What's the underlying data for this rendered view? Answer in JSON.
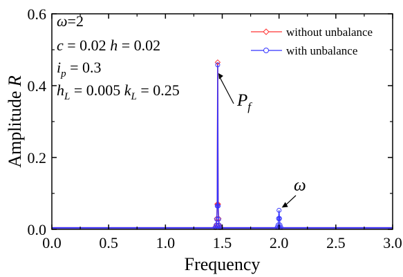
{
  "chart_data": {
    "type": "line",
    "xlabel": "Frequency",
    "ylabel": {
      "text": "Amplitude",
      "symbol": "R"
    },
    "xlim": [
      0.0,
      3.0
    ],
    "ylim": [
      0.0,
      0.6
    ],
    "x_ticks": [
      0.0,
      0.5,
      1.0,
      1.5,
      2.0,
      2.5,
      3.0
    ],
    "x_tick_labels": [
      "0.0",
      "0.5",
      "1.0",
      "1.5",
      "2.0",
      "2.5",
      "3.0"
    ],
    "y_ticks": [
      0.0,
      0.2,
      0.4,
      0.6
    ],
    "y_tick_labels": [
      "0.0",
      "0.2",
      "0.4",
      "0.6"
    ],
    "grid": false,
    "legend_position": "top-right",
    "series": [
      {
        "name": "without unbalance",
        "color": "#ff3333",
        "marker": "diamond",
        "x": [
          0.0,
          1.4,
          1.44,
          1.448,
          1.452,
          1.456,
          1.46,
          1.464,
          1.468,
          1.472,
          1.48,
          1.52,
          2.0,
          3.0
        ],
        "y": [
          0.004,
          0.004,
          0.006,
          0.012,
          0.03,
          0.07,
          0.465,
          0.07,
          0.03,
          0.012,
          0.006,
          0.004,
          0.004,
          0.004
        ]
      },
      {
        "name": "with unbalance",
        "color": "#3333ff",
        "marker": "circle",
        "x": [
          0.0,
          1.4,
          1.44,
          1.448,
          1.452,
          1.456,
          1.46,
          1.464,
          1.468,
          1.472,
          1.48,
          1.52,
          1.95,
          1.985,
          1.992,
          1.996,
          2.0,
          2.004,
          2.008,
          2.015,
          2.05,
          3.0
        ],
        "y": [
          0.004,
          0.004,
          0.006,
          0.012,
          0.028,
          0.065,
          0.458,
          0.065,
          0.028,
          0.012,
          0.006,
          0.004,
          0.004,
          0.006,
          0.012,
          0.03,
          0.053,
          0.03,
          0.012,
          0.006,
          0.004,
          0.004
        ]
      }
    ],
    "parameters": [
      {
        "sym": "ω",
        "text": "=2"
      },
      {
        "sym": "c",
        "text": " = 0.02  ",
        "sym2": "h",
        "text2": " = 0.02"
      },
      {
        "sym": "i",
        "sub": "p",
        "text": " = 0.3"
      },
      {
        "sym": "h",
        "sub": "L",
        "text": " = 0.005  ",
        "sym2": "k",
        "sub2": "L",
        "text2": " = 0.25"
      }
    ],
    "annotations": [
      {
        "sym": "P",
        "sub": "f",
        "x": 1.46,
        "y": 0.458
      },
      {
        "sym": "ω",
        "x": 2.0,
        "y": 0.053
      }
    ]
  }
}
